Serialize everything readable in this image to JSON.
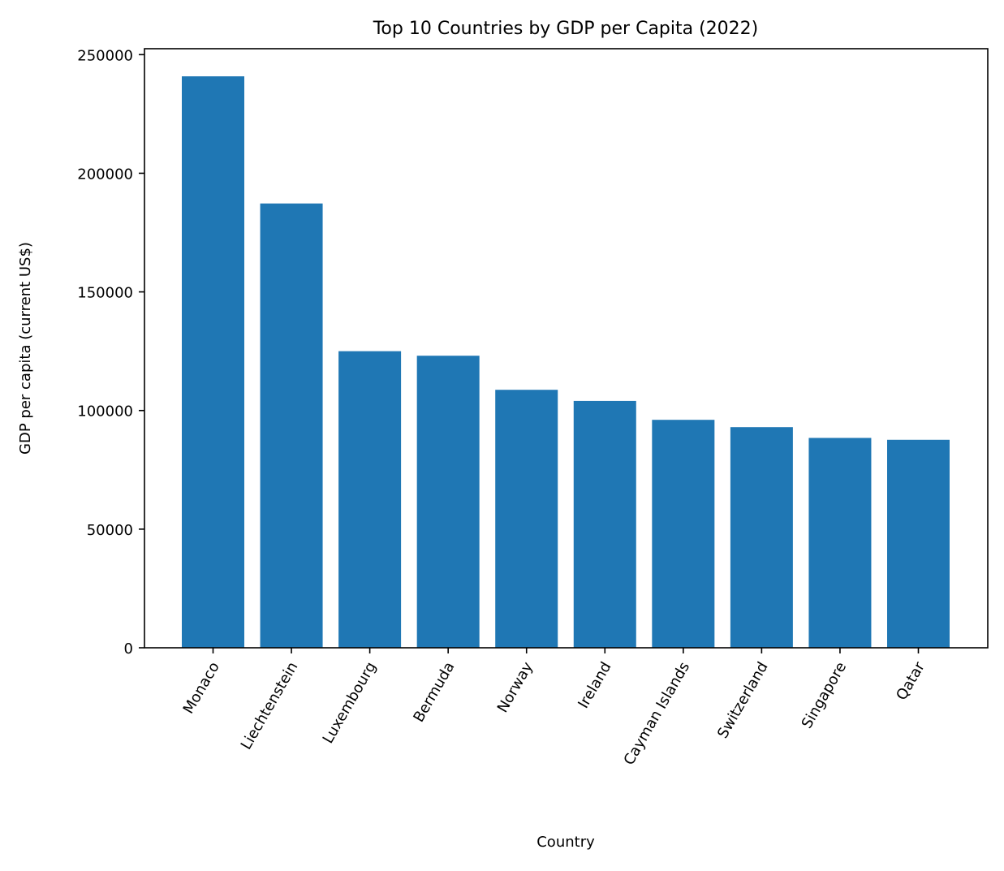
{
  "chart_data": {
    "type": "bar",
    "title": "Top 10 Countries by GDP per Capita (2022)",
    "xlabel": "Country",
    "ylabel": "GDP per capita (current US$)",
    "categories": [
      "Monaco",
      "Liechtenstein",
      "Luxembourg",
      "Bermuda",
      "Norway",
      "Ireland",
      "Cayman Islands",
      "Switzerland",
      "Singapore",
      "Qatar"
    ],
    "values": [
      240862,
      187267,
      125006,
      123091,
      108729,
      104039,
      96074,
      92992,
      88450,
      87662
    ],
    "ylim": [
      0,
      252500
    ],
    "yticks": [
      0,
      50000,
      100000,
      150000,
      200000,
      250000
    ],
    "ytick_labels": [
      "0",
      "50000",
      "100000",
      "150000",
      "200000",
      "250000"
    ],
    "bar_color": "#1f77b4",
    "grid": false,
    "legend": "none"
  }
}
